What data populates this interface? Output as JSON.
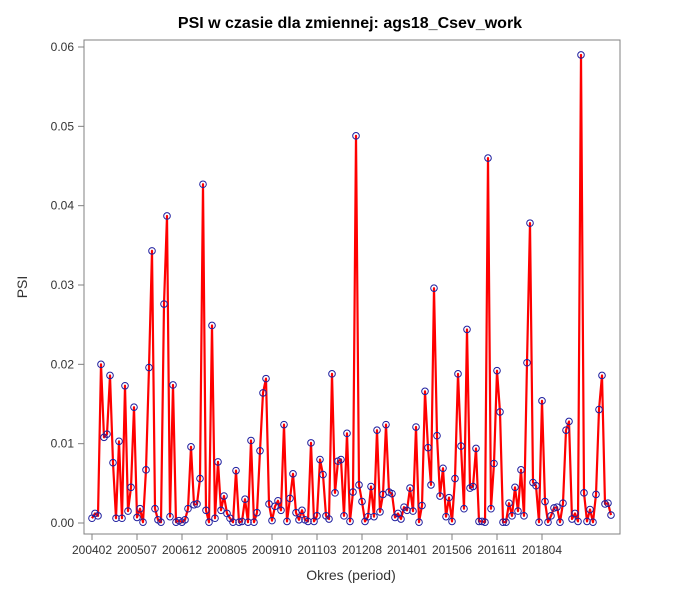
{
  "chart_data": {
    "type": "line",
    "title": "PSI w czasie dla zmiennej: ags18_Csev_work",
    "xlabel": "Okres (period)",
    "ylabel": "PSI",
    "ylim": [
      0,
      0.06
    ],
    "yticks": [
      "0.00",
      "0.01",
      "0.02",
      "0.03",
      "0.04",
      "0.05",
      "0.06"
    ],
    "xticks": [
      "200402",
      "200507",
      "200612",
      "200805",
      "200910",
      "201103",
      "201208",
      "201401",
      "201506",
      "201611",
      "201804"
    ],
    "grid": false,
    "colors": {
      "line": "#ff0000",
      "marker": "#1f1f9f"
    },
    "series": [
      {
        "values": [
          0.0006,
          0.0012,
          0.0009,
          0.02,
          0.0108,
          0.0112,
          0.0186,
          0.0076,
          0.0006,
          0.0103,
          0.0006,
          0.0173,
          0.0015,
          0.0045,
          0.0146,
          0.0007,
          0.0018,
          0.0001,
          0.0067,
          0.0196,
          0.0343,
          0.0018,
          0.0004,
          0.0001,
          0.0276,
          0.0387,
          0.0008,
          0.0174,
          0.0001,
          0.0003,
          0.0001,
          0.0004,
          0.0018,
          0.0096,
          0.0023,
          0.0024,
          0.0056,
          0.0427,
          0.0016,
          0.0001,
          0.0249,
          0.0006,
          0.0077,
          0.0016,
          0.0034,
          0.0012,
          0.0006,
          0.0001,
          0.0066,
          0.0001,
          0.0002,
          0.003,
          0.0001,
          0.0104,
          0.0001,
          0.0013,
          0.0091,
          0.0164,
          0.0182,
          0.0024,
          0.0003,
          0.0021,
          0.0028,
          0.0016,
          0.0124,
          0.0002,
          0.0031,
          0.0062,
          0.0013,
          0.0004,
          0.0016,
          0.0004,
          0.0002,
          0.0101,
          0.0002,
          0.0009,
          0.008,
          0.0061,
          0.0009,
          0.0005,
          0.0188,
          0.0038,
          0.0078,
          0.008,
          0.0009,
          0.0113,
          0.0002,
          0.0039,
          0.0488,
          0.0048,
          0.0027,
          0.0002,
          0.0008,
          0.0046,
          0.0008,
          0.0117,
          0.0014,
          0.0036,
          0.0124,
          0.0039,
          0.0037,
          0.0007,
          0.0012,
          0.0005,
          0.002,
          0.0016,
          0.0044,
          0.0015,
          0.0121,
          0.0001,
          0.0022,
          0.0166,
          0.0095,
          0.0048,
          0.0296,
          0.011,
          0.0034,
          0.0069,
          0.0008,
          0.0032,
          0.0002,
          0.0056,
          0.0188,
          0.0097,
          0.0018,
          0.0244,
          0.0044,
          0.0046,
          0.0094,
          0.0002,
          0.0002,
          0.0001,
          0.046,
          0.0018,
          0.0075,
          0.0192,
          0.014,
          0.0001,
          0.0001,
          0.0025,
          0.0009,
          0.0045,
          0.0015,
          0.0067,
          0.0009,
          0.0202,
          0.0378,
          0.0051,
          0.0047,
          0.0001,
          0.0154,
          0.0027,
          0.0001,
          0.0009,
          0.0019,
          0.002,
          0.0001,
          0.0025,
          0.0117,
          0.0128,
          0.0005,
          0.0012,
          0.0002,
          0.059,
          0.0038,
          0.0002,
          0.0017,
          0.0001,
          0.0036,
          0.0143,
          0.0186,
          0.0024,
          0.0025,
          0.001
        ]
      }
    ]
  }
}
